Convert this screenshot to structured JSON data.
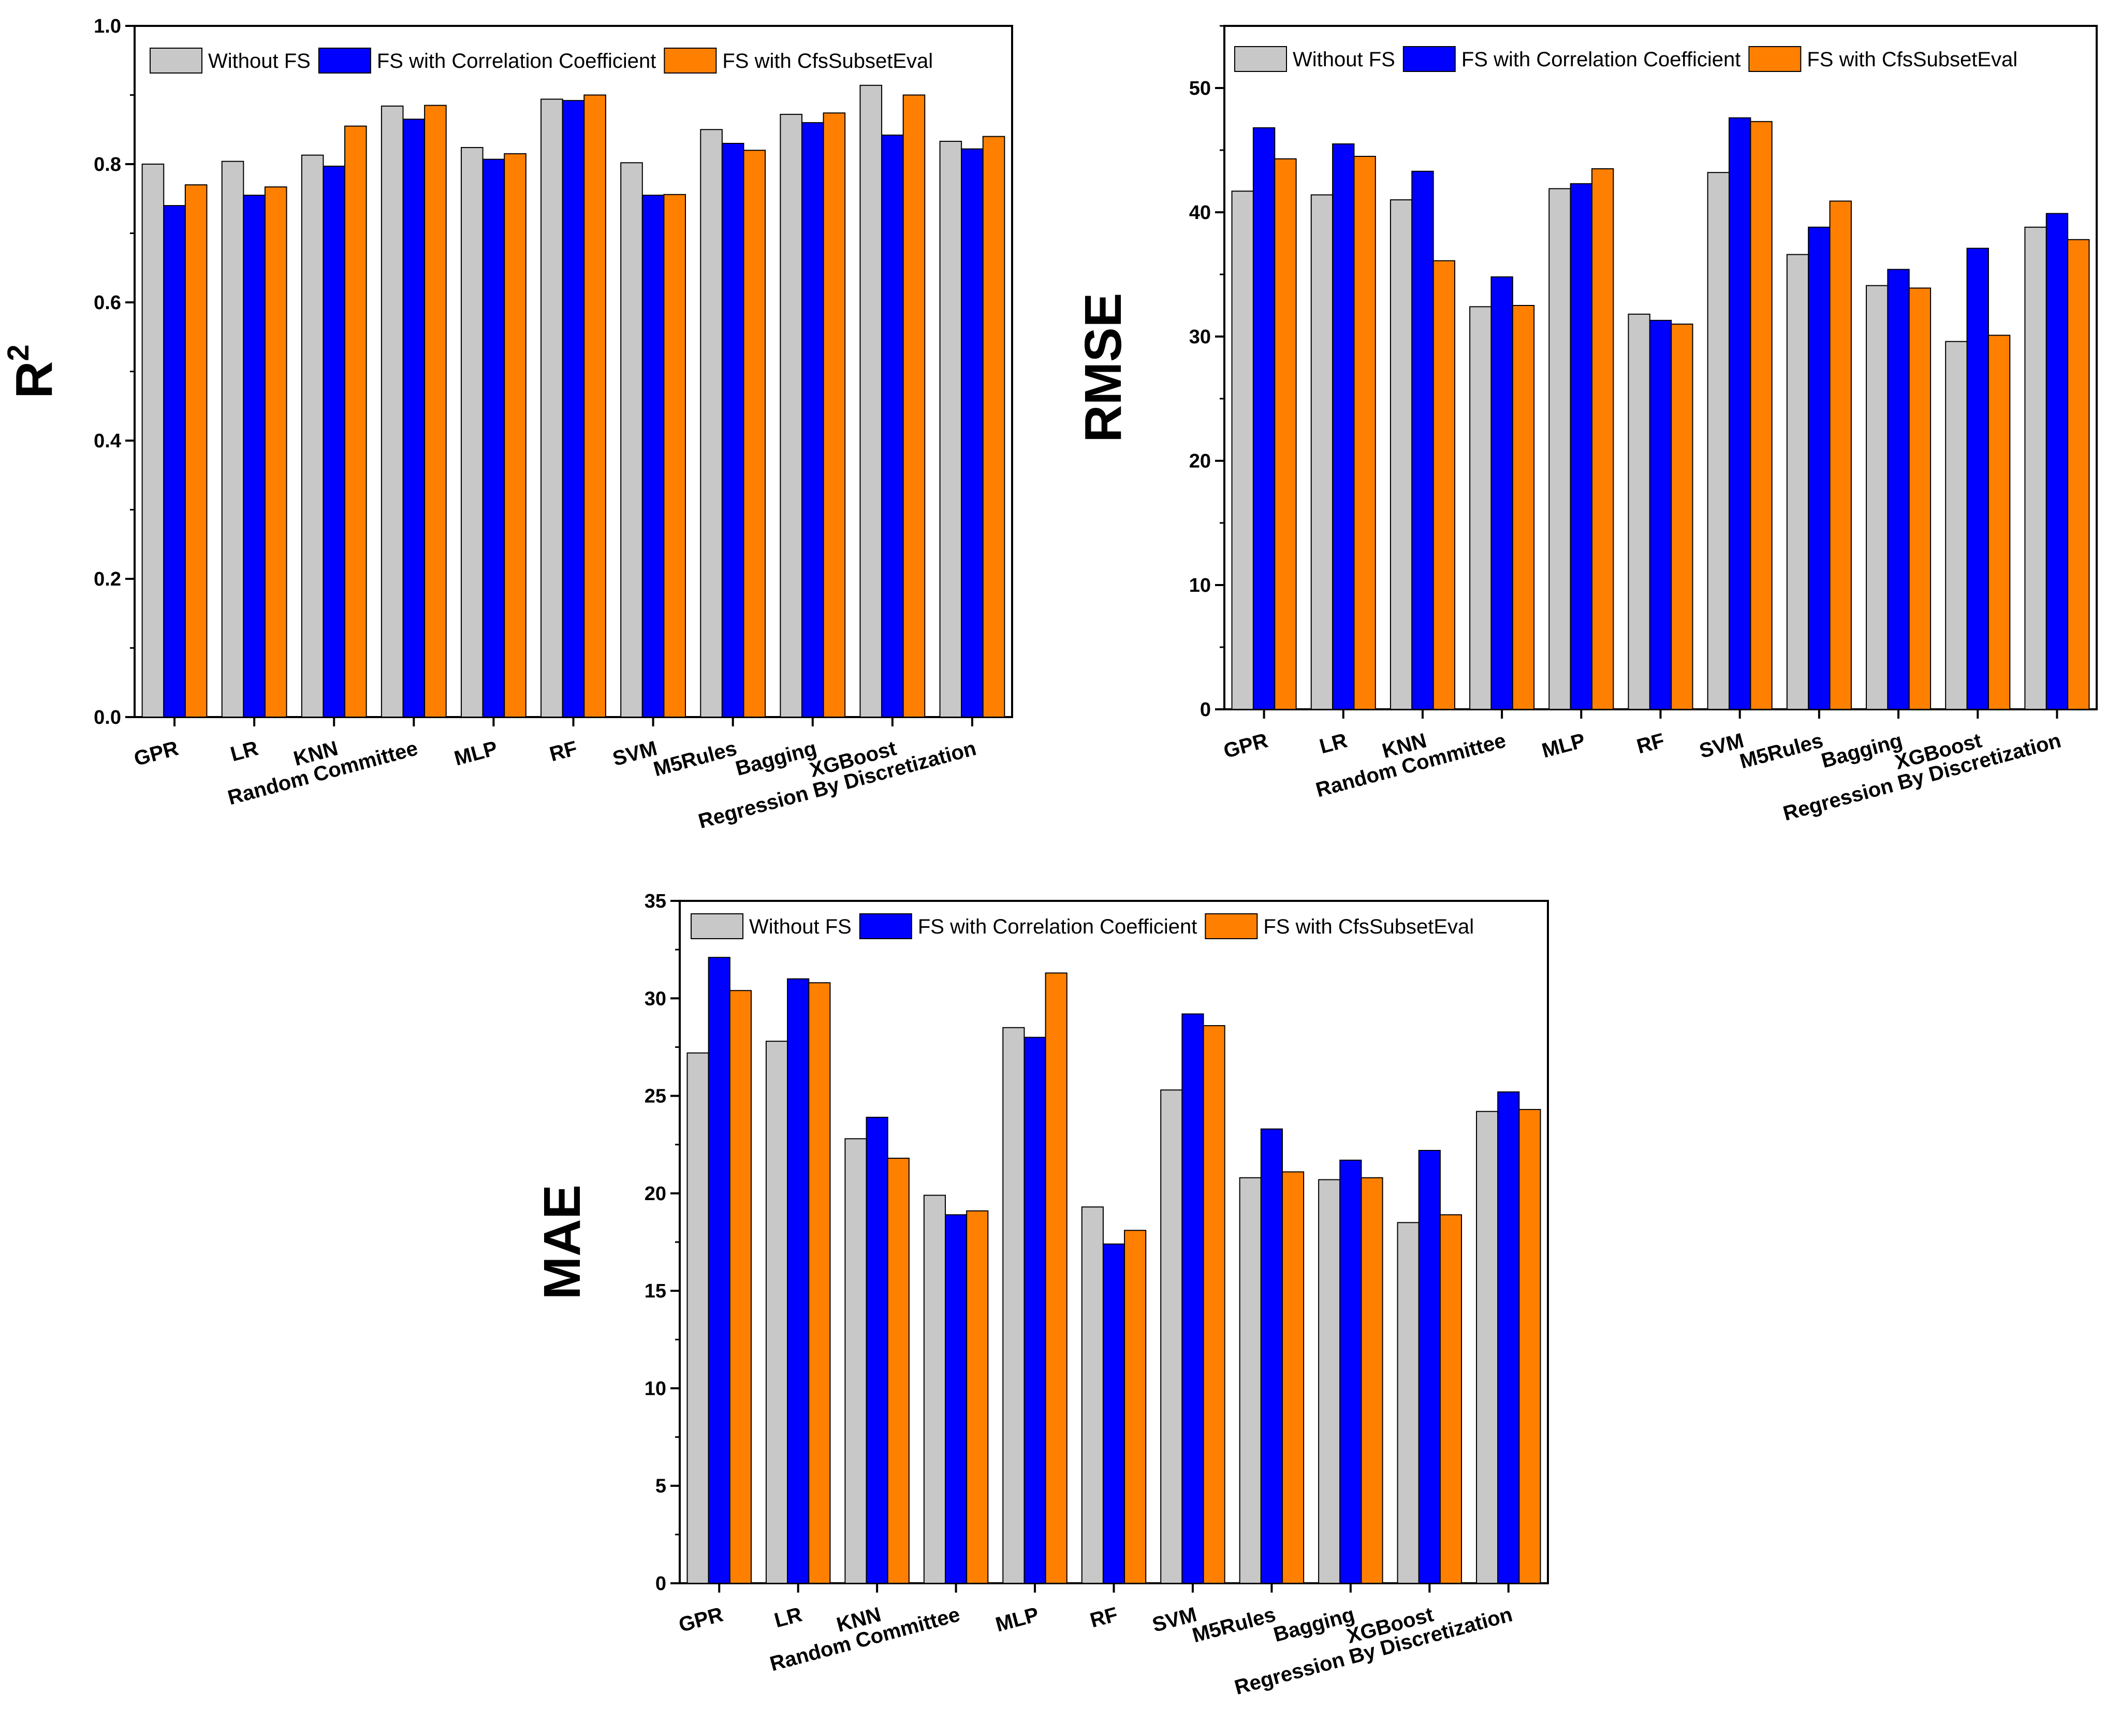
{
  "colors": {
    "without_fs": "#c8c8c8",
    "fs_correlation": "#0000ff",
    "fs_cfs": "#ff8000",
    "axis": "#000000"
  },
  "chart_data": [
    {
      "type": "bar",
      "ylabel": "R",
      "ylabel_superscript": "2",
      "ylim": [
        0,
        1.0
      ],
      "yticks": [
        "0.0",
        "0.2",
        "0.4",
        "0.6",
        "0.8",
        "1.0"
      ],
      "legend_position": "top",
      "categories": [
        "GPR",
        "LR",
        "KNN",
        "Random Committee",
        "MLP",
        "RF",
        "SVM",
        "M5Rules",
        "Bagging",
        "XGBoost",
        "Regression By Discretization"
      ],
      "series": [
        {
          "name": "Without FS",
          "values": [
            0.8,
            0.804,
            0.813,
            0.884,
            0.824,
            0.894,
            0.802,
            0.85,
            0.872,
            0.914,
            0.833
          ]
        },
        {
          "name": "FS with Correlation Coefficient",
          "values": [
            0.74,
            0.755,
            0.797,
            0.865,
            0.807,
            0.892,
            0.755,
            0.83,
            0.86,
            0.842,
            0.822
          ]
        },
        {
          "name": "FS with CfsSubsetEval",
          "values": [
            0.77,
            0.767,
            0.855,
            0.885,
            0.815,
            0.9,
            0.756,
            0.82,
            0.874,
            0.9,
            0.84
          ]
        }
      ]
    },
    {
      "type": "bar",
      "ylabel": "RMSE",
      "ylabel_superscript": "",
      "ylim": [
        0,
        55
      ],
      "yticks": [
        "0",
        "10",
        "20",
        "30",
        "40",
        "50"
      ],
      "legend_position": "top",
      "categories": [
        "GPR",
        "LR",
        "KNN",
        "Random Committee",
        "MLP",
        "RF",
        "SVM",
        "M5Rules",
        "Bagging",
        "XGBoost",
        "Regression By Discretization"
      ],
      "series": [
        {
          "name": "Without FS",
          "values": [
            41.7,
            41.4,
            41.0,
            32.4,
            41.9,
            31.8,
            43.2,
            36.6,
            34.1,
            29.6,
            38.8
          ]
        },
        {
          "name": "FS with Correlation Coefficient",
          "values": [
            46.8,
            45.5,
            43.3,
            34.8,
            42.3,
            31.3,
            47.6,
            38.8,
            35.4,
            37.1,
            39.9
          ]
        },
        {
          "name": "FS with CfsSubsetEval",
          "values": [
            44.3,
            44.5,
            36.1,
            32.5,
            43.5,
            31.0,
            47.3,
            40.9,
            33.9,
            30.1,
            37.8
          ]
        }
      ]
    },
    {
      "type": "bar",
      "ylabel": "MAE",
      "ylabel_superscript": "",
      "ylim": [
        0,
        35
      ],
      "yticks": [
        "0",
        "5",
        "10",
        "15",
        "20",
        "25",
        "30",
        "35"
      ],
      "legend_position": "top",
      "categories": [
        "GPR",
        "LR",
        "KNN",
        "Random Committee",
        "MLP",
        "RF",
        "SVM",
        "M5Rules",
        "Bagging",
        "XGBoost",
        "Regression By Discretization"
      ],
      "series": [
        {
          "name": "Without FS",
          "values": [
            27.2,
            27.8,
            22.8,
            19.9,
            28.5,
            19.3,
            25.3,
            20.8,
            20.7,
            18.5,
            24.2
          ]
        },
        {
          "name": "FS with Correlation Coefficient",
          "values": [
            32.1,
            31.0,
            23.9,
            18.9,
            28.0,
            17.4,
            29.2,
            23.3,
            21.7,
            22.2,
            25.2
          ]
        },
        {
          "name": "FS with CfsSubsetEval",
          "values": [
            30.4,
            30.8,
            21.8,
            19.1,
            31.3,
            18.1,
            28.6,
            21.1,
            20.8,
            18.9,
            24.3
          ]
        }
      ]
    }
  ]
}
